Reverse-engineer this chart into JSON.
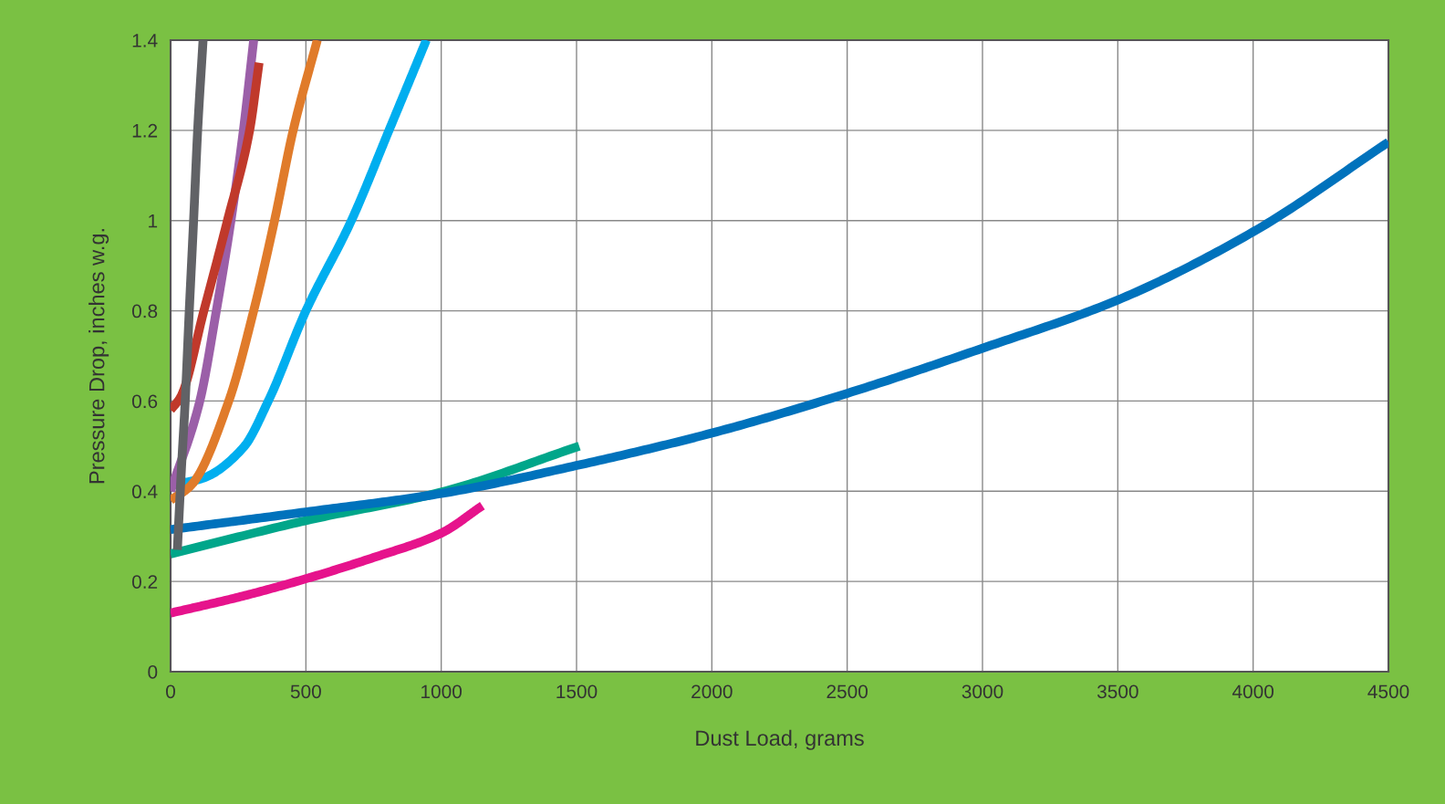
{
  "chart_data": {
    "type": "line",
    "xlabel": "Dust Load, grams",
    "ylabel": "Pressure Drop, inches w.g.",
    "xlim": [
      0,
      4500
    ],
    "xticks": [
      0,
      500,
      1000,
      1500,
      2000,
      2500,
      3000,
      3500,
      4000,
      4500
    ],
    "ylim": [
      0,
      1.4
    ],
    "yticks": [
      0,
      0.2,
      0.4,
      0.6,
      0.8,
      1,
      1.2,
      1.4
    ],
    "grid": true,
    "marker": "none",
    "line_style": "solid",
    "series": [
      {
        "color": "#e6138c",
        "x": [
          0,
          250,
          500,
          750,
          1000,
          1152
        ],
        "values": [
          0.13,
          0.165,
          0.206,
          0.253,
          0.307,
          0.368
        ]
      },
      {
        "color": "#00a68a",
        "x": [
          0,
          500,
          1000,
          1510
        ],
        "values": [
          0.261,
          0.335,
          0.398,
          0.5
        ]
      },
      {
        "color": "#0072bc",
        "x": [
          0,
          500,
          1000,
          1500,
          2000,
          2500,
          3000,
          3500,
          4000,
          4500
        ],
        "values": [
          0.315,
          0.354,
          0.395,
          0.457,
          0.529,
          0.617,
          0.717,
          0.824,
          0.975,
          1.174
        ]
      },
      {
        "color": "#00aeef",
        "x": [
          0,
          115,
          269,
          361,
          500,
          668,
          807,
          945
        ],
        "values": [
          0.414,
          0.428,
          0.497,
          0.6,
          0.8,
          1.0,
          1.2,
          1.4
        ]
      },
      {
        "color": "#e07b2a",
        "x": [
          0,
          77,
          215,
          307,
          384,
          453,
          542
        ],
        "values": [
          0.38,
          0.414,
          0.6,
          0.8,
          1.0,
          1.2,
          1.4
        ]
      },
      {
        "color": "#9b5fa8",
        "x": [
          0,
          108,
          169,
          223,
          269,
          307
        ],
        "values": [
          0.4,
          0.6,
          0.8,
          1.0,
          1.2,
          1.4
        ]
      },
      {
        "color": "#c0392b",
        "x": [
          0,
          38,
          123,
          210,
          292,
          327
        ],
        "values": [
          0.58,
          0.61,
          0.8,
          1.0,
          1.2,
          1.35
        ]
      },
      {
        "color": "#616266",
        "x": [
          25,
          40,
          54,
          69,
          85,
          100,
          120
        ],
        "values": [
          0.27,
          0.45,
          0.6,
          0.8,
          1.0,
          1.2,
          1.4
        ]
      }
    ]
  }
}
